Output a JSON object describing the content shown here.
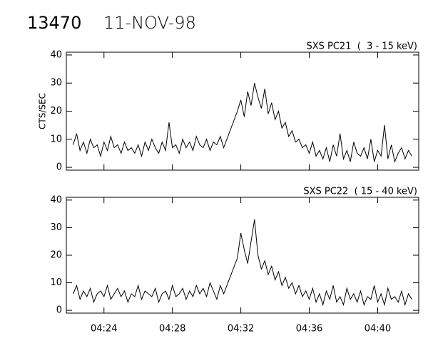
{
  "header": {
    "id": "13470",
    "date": "11-NOV-98"
  },
  "chart_data": [
    {
      "type": "line",
      "title": "SXS PC21  (  3 - 15 keV)",
      "ylabel": "CTS/SEC",
      "color": "#000000",
      "x": [
        22.2,
        22.4,
        22.6,
        22.8,
        23.0,
        23.2,
        23.4,
        23.6,
        23.8,
        24.0,
        24.2,
        24.4,
        24.6,
        24.8,
        25.0,
        25.2,
        25.4,
        25.6,
        25.8,
        26.0,
        26.2,
        26.4,
        26.6,
        26.8,
        27.0,
        27.2,
        27.4,
        27.6,
        27.8,
        28.0,
        28.2,
        28.4,
        28.6,
        28.8,
        29.0,
        29.2,
        29.4,
        29.6,
        29.8,
        30.0,
        30.2,
        30.4,
        30.6,
        30.8,
        31.0,
        31.8,
        32.0,
        32.2,
        32.4,
        32.6,
        32.8,
        33.0,
        33.2,
        33.4,
        33.6,
        33.8,
        34.0,
        34.2,
        34.4,
        34.6,
        34.8,
        35.0,
        35.2,
        35.4,
        35.6,
        35.8,
        36.0,
        36.2,
        36.4,
        36.6,
        36.8,
        37.0,
        37.2,
        37.4,
        37.6,
        37.8,
        38.0,
        38.2,
        38.4,
        38.6,
        38.8,
        39.0,
        39.2,
        39.4,
        39.6,
        39.8,
        40.0,
        40.2,
        40.4,
        40.6,
        40.8,
        41.0,
        41.2,
        41.4,
        41.6,
        41.8,
        42.0
      ],
      "values": [
        8,
        12,
        6,
        9,
        5,
        10,
        7,
        8,
        4,
        9,
        6,
        11,
        7,
        8,
        5,
        9,
        6,
        7,
        5,
        8,
        4,
        9,
        6,
        10,
        7,
        5,
        9,
        6,
        16,
        7,
        8,
        5,
        10,
        7,
        9,
        6,
        11,
        8,
        7,
        10,
        6,
        9,
        8,
        11,
        7,
        20,
        24,
        18,
        27,
        22,
        30,
        25,
        21,
        28,
        19,
        23,
        17,
        20,
        14,
        16,
        11,
        13,
        9,
        10,
        7,
        8,
        5,
        9,
        4,
        6,
        3,
        7,
        2,
        8,
        4,
        12,
        3,
        6,
        2,
        9,
        5,
        4,
        7,
        3,
        10,
        2,
        6,
        4,
        15,
        3,
        8,
        2,
        5,
        7,
        3,
        6,
        4
      ],
      "xlim": [
        21.8,
        42.4
      ],
      "ylim": [
        -1,
        41
      ],
      "yticks": [
        0,
        10,
        20,
        30,
        40
      ]
    },
    {
      "type": "line",
      "title": "SXS PC22  ( 15 - 40 keV)",
      "color": "#000000",
      "x": [
        22.2,
        22.4,
        22.6,
        22.8,
        23.0,
        23.2,
        23.4,
        23.6,
        23.8,
        24.0,
        24.2,
        24.4,
        24.6,
        24.8,
        25.0,
        25.2,
        25.4,
        25.6,
        25.8,
        26.0,
        26.2,
        26.4,
        26.6,
        26.8,
        27.0,
        27.2,
        27.4,
        27.6,
        27.8,
        28.0,
        28.2,
        28.4,
        28.6,
        28.8,
        29.0,
        29.2,
        29.4,
        29.6,
        29.8,
        30.0,
        30.2,
        30.4,
        30.6,
        30.8,
        31.0,
        31.8,
        32.0,
        32.2,
        32.4,
        32.6,
        32.8,
        33.0,
        33.2,
        33.4,
        33.6,
        33.8,
        34.0,
        34.2,
        34.4,
        34.6,
        34.8,
        35.0,
        35.2,
        35.4,
        35.6,
        35.8,
        36.0,
        36.2,
        36.4,
        36.6,
        36.8,
        37.0,
        37.2,
        37.4,
        37.6,
        37.8,
        38.0,
        38.2,
        38.4,
        38.6,
        38.8,
        39.0,
        39.2,
        39.4,
        39.6,
        39.8,
        40.0,
        40.2,
        40.4,
        40.6,
        40.8,
        41.0,
        41.2,
        41.4,
        41.6,
        41.8,
        42.0
      ],
      "values": [
        6,
        9,
        4,
        7,
        5,
        8,
        3,
        6,
        7,
        5,
        9,
        4,
        6,
        8,
        5,
        7,
        3,
        6,
        5,
        9,
        4,
        7,
        6,
        5,
        8,
        3,
        6,
        7,
        4,
        9,
        5,
        6,
        8,
        4,
        7,
        5,
        9,
        6,
        8,
        5,
        10,
        7,
        4,
        9,
        6,
        19,
        28,
        22,
        17,
        25,
        33,
        20,
        15,
        18,
        13,
        16,
        11,
        14,
        9,
        12,
        8,
        10,
        6,
        9,
        5,
        7,
        4,
        8,
        3,
        6,
        2,
        7,
        4,
        9,
        3,
        5,
        2,
        8,
        4,
        6,
        3,
        7,
        2,
        5,
        4,
        9,
        3,
        6,
        2,
        8,
        4,
        5,
        3,
        7,
        2,
        6,
        4
      ],
      "xlim": [
        21.8,
        42.4
      ],
      "ylim": [
        -1,
        41
      ],
      "yticks": [
        0,
        10,
        20,
        30,
        40
      ],
      "xticks": [
        {
          "value": 24,
          "label": "04:24"
        },
        {
          "value": 28,
          "label": "04:28"
        },
        {
          "value": 32,
          "label": "04:32"
        },
        {
          "value": 36,
          "label": "04:36"
        },
        {
          "value": 40,
          "label": "04:40"
        }
      ]
    }
  ]
}
